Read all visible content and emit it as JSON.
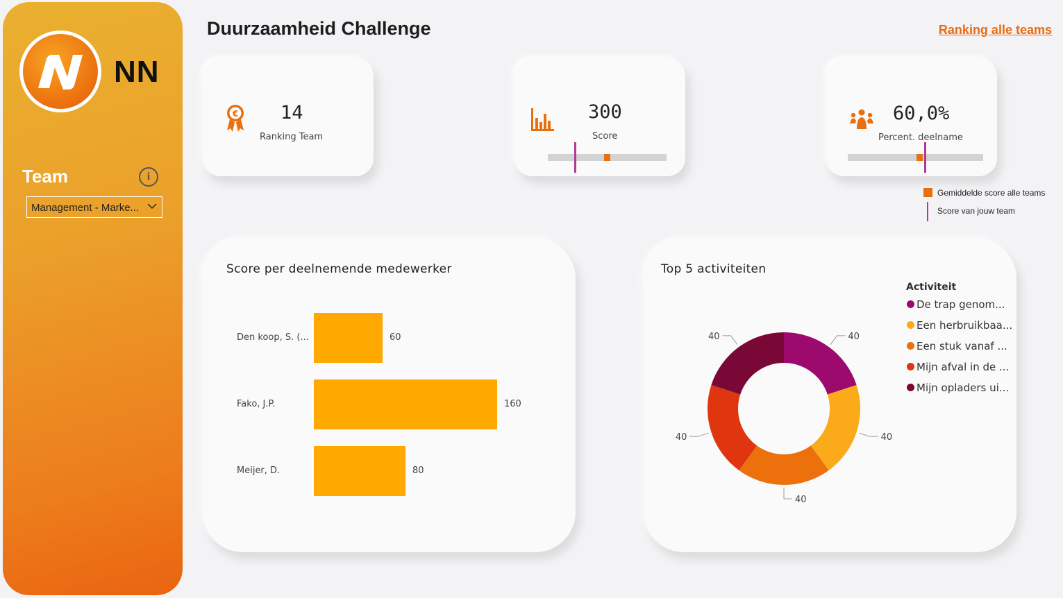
{
  "brand": {
    "logo_text": "NN",
    "accent": "#ea6a10"
  },
  "sidebar": {
    "team_label": "Team",
    "info_icon": "info-icon",
    "team_select_value": "Management - Marke...",
    "gradient_top": "#eab030",
    "gradient_bottom": "#ea6410"
  },
  "header": {
    "title": "Duurzaamheid Challenge",
    "ranking_link": "Ranking alle teams"
  },
  "kpis": {
    "ranking": {
      "value": "14",
      "label": "Ranking Team",
      "icon": "award-euro-icon"
    },
    "score": {
      "value": "300",
      "label": "Score",
      "icon": "bar-chart-icon",
      "avg_fraction": 0.5,
      "team_fraction": 0.23
    },
    "participation": {
      "value": "60,0%",
      "label": "Percent. deelname",
      "icon": "people-icon",
      "avg_fraction": 0.53,
      "team_fraction": 0.57
    }
  },
  "gauge_legend": {
    "avg_label": "Gemiddelde score alle teams",
    "team_label": "Score van jouw team",
    "avg_color": "#e8700e",
    "team_color": "#b03a9a"
  },
  "bar_chart_title": "Score per deelnemende medewerker",
  "donut_chart_title": "Top 5 activiteiten",
  "donut_legend": {
    "title": "Activiteit",
    "items": [
      "De trap genom...",
      "Een herbruikbaa...",
      "Een stuk vanaf ...",
      "Mijn afval in de ...",
      "Mijn opladers ui..."
    ]
  },
  "chart_data": [
    {
      "type": "bar",
      "orientation": "horizontal",
      "title": "Score per deelnemende medewerker",
      "categories": [
        "Den koop, S. (...",
        "Fako, J.P.",
        "Meijer, D."
      ],
      "values": [
        60,
        160,
        80
      ],
      "value_labels": [
        "60",
        "160",
        "80"
      ],
      "xlim": [
        0,
        160
      ],
      "color": "#fea800",
      "grid": false
    },
    {
      "type": "pie",
      "donut": true,
      "title": "Top 5 activiteiten",
      "categories": [
        "De trap genom...",
        "Een herbruikbaa...",
        "Een stuk vanaf ...",
        "Mijn afval in de ...",
        "Mijn opladers ui..."
      ],
      "values": [
        40,
        40,
        40,
        40,
        40
      ],
      "value_labels": [
        "40",
        "40",
        "40",
        "40",
        "40"
      ],
      "colors": [
        "#9c0a6e",
        "#fbab1a",
        "#ec700c",
        "#e03610",
        "#7a0837"
      ],
      "legend": "top-right",
      "legend_title": "Activiteit"
    }
  ]
}
